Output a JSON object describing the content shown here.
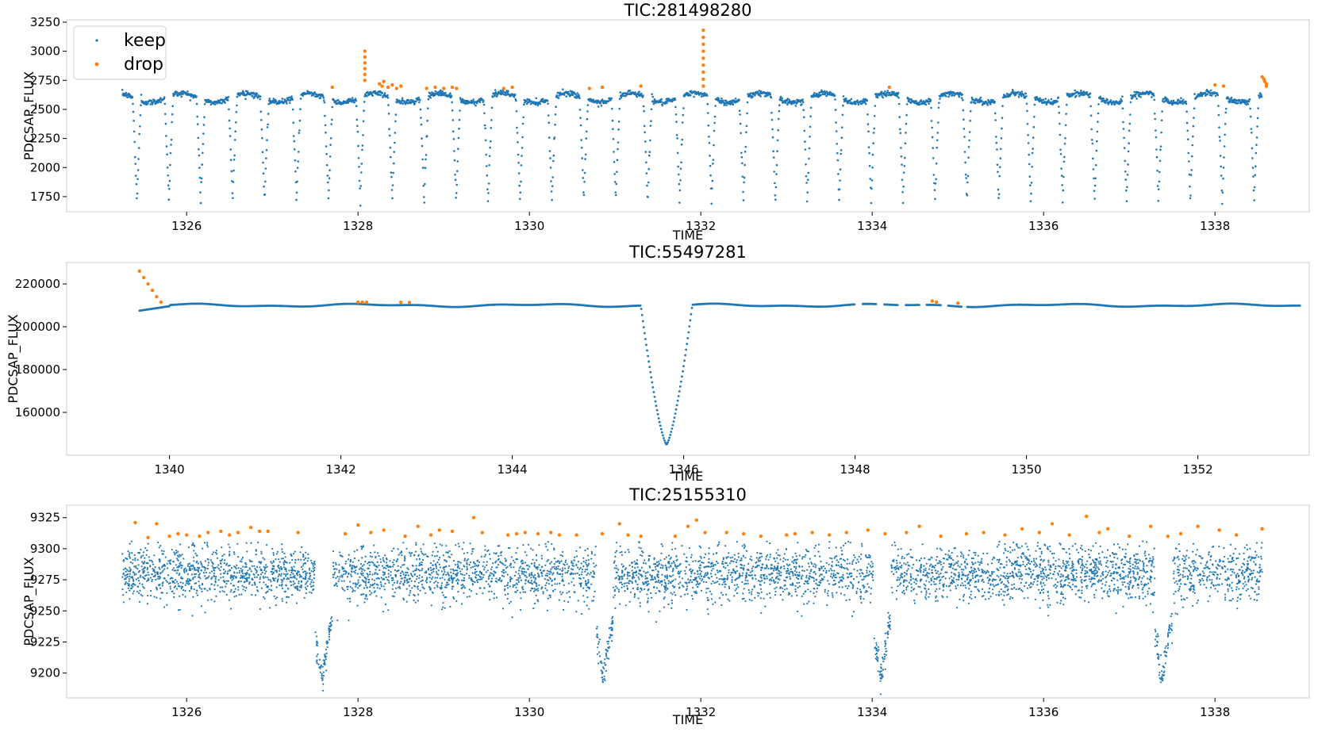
{
  "colors": {
    "keep": "#1f77b4",
    "drop": "#ff7f0e"
  },
  "legend": {
    "items": [
      "keep",
      "drop"
    ],
    "location": "upper-left"
  },
  "chart_data": [
    {
      "type": "scatter",
      "title": "TIC:281498280",
      "xlabel": "TIME",
      "ylabel": "PDCSAP_FLUX",
      "xlim": [
        1324.6,
        1339.1
      ],
      "ylim": [
        1620,
        3270
      ],
      "xticks": [
        1326,
        1328,
        1330,
        1332,
        1334,
        1336,
        1338
      ],
      "yticks": [
        1750,
        2000,
        2250,
        2500,
        2750,
        3000,
        3250
      ],
      "series": [
        {
          "name": "keep",
          "description": "periodic baseline ~2600 with sinusoidal ripple and narrow eclipse dips to ~1700",
          "baseline": 2600,
          "ripple_amplitude": 40,
          "ripple_period": 0.75,
          "dip_period": 0.3725,
          "dip_first": 1325.42,
          "dip_min": 1700,
          "x_range": [
            1325.25,
            1338.55
          ]
        },
        {
          "name": "drop",
          "description": "outliers above baseline",
          "points": [
            [
              1328.08,
              3000
            ],
            [
              1328.08,
              2950
            ],
            [
              1328.08,
              2900
            ],
            [
              1328.08,
              2850
            ],
            [
              1328.08,
              2800
            ],
            [
              1328.08,
              2750
            ],
            [
              1328.25,
              2720
            ],
            [
              1328.28,
              2700
            ],
            [
              1328.3,
              2740
            ],
            [
              1328.35,
              2690
            ],
            [
              1328.4,
              2710
            ],
            [
              1328.45,
              2680
            ],
            [
              1328.5,
              2700
            ],
            [
              1328.8,
              2680
            ],
            [
              1328.9,
              2690
            ],
            [
              1329.0,
              2680
            ],
            [
              1329.1,
              2690
            ],
            [
              1329.15,
              2680
            ],
            [
              1329.7,
              2680
            ],
            [
              1329.8,
              2690
            ],
            [
              1330.7,
              2680
            ],
            [
              1330.85,
              2690
            ],
            [
              1331.3,
              2700
            ],
            [
              1327.7,
              2690
            ],
            [
              1332.03,
              3180
            ],
            [
              1332.03,
              3120
            ],
            [
              1332.03,
              3060
            ],
            [
              1332.03,
              3000
            ],
            [
              1332.03,
              2940
            ],
            [
              1332.03,
              2880
            ],
            [
              1332.03,
              2820
            ],
            [
              1332.03,
              2760
            ],
            [
              1332.03,
              2700
            ],
            [
              1334.2,
              2690
            ],
            [
              1338.0,
              2710
            ],
            [
              1338.1,
              2700
            ],
            [
              1338.55,
              2780
            ],
            [
              1338.57,
              2760
            ],
            [
              1338.58,
              2740
            ],
            [
              1338.6,
              2720
            ],
            [
              1338.6,
              2700
            ]
          ]
        }
      ]
    },
    {
      "type": "scatter",
      "title": "TIC:55497281",
      "xlabel": "TIME",
      "ylabel": "PDCSAP_FLUX",
      "xlim": [
        1338.8,
        1353.3
      ],
      "ylim": [
        140000,
        230000
      ],
      "xticks": [
        1340,
        1342,
        1344,
        1346,
        1348,
        1350,
        1352
      ],
      "yticks": [
        160000,
        180000,
        200000,
        220000
      ],
      "series": [
        {
          "name": "keep",
          "description": "flat baseline ~210000 with a single deep eclipse near 1345.8 reaching ~145000; data gaps near 1348-1349",
          "baseline": 210000,
          "eclipse_center": 1345.8,
          "eclipse_min": 145000,
          "x_range": [
            1339.65,
            1353.2
          ]
        },
        {
          "name": "drop",
          "description": "initial decay and small bumps",
          "points": [
            [
              1339.65,
              226000
            ],
            [
              1339.7,
              223000
            ],
            [
              1339.75,
              220000
            ],
            [
              1339.8,
              217000
            ],
            [
              1339.85,
              214000
            ],
            [
              1339.9,
              211500
            ],
            [
              1342.2,
              211500
            ],
            [
              1342.25,
              211500
            ],
            [
              1342.3,
              211400
            ],
            [
              1342.7,
              211400
            ],
            [
              1342.8,
              211300
            ],
            [
              1348.9,
              212000
            ],
            [
              1348.95,
              211500
            ],
            [
              1349.2,
              211000
            ]
          ]
        }
      ]
    },
    {
      "type": "scatter",
      "title": "TIC:25155310",
      "xlabel": "TIME",
      "ylabel": "PDCSAP_FLUX",
      "xlim": [
        1324.6,
        1339.1
      ],
      "ylim": [
        9180,
        9335
      ],
      "xticks": [
        1326,
        1328,
        1330,
        1332,
        1334,
        1336,
        1338
      ],
      "yticks": [
        9200,
        9225,
        9250,
        9275,
        9300,
        9325
      ],
      "series": [
        {
          "name": "keep",
          "description": "noisy scatter around ~9280 with four eclipse dips to ~9195 near 1327.6, 1330.9, 1334.1, 1337.4",
          "baseline": 9280,
          "noise": 11,
          "dips": [
            1327.58,
            1330.86,
            1334.1,
            1337.38
          ],
          "dip_min": 9195,
          "gaps": [
            [
              1327.5,
              1327.7
            ],
            [
              1330.78,
              1330.98
            ],
            [
              1334.02,
              1334.22
            ],
            [
              1337.3,
              1337.5
            ]
          ],
          "x_range": [
            1325.25,
            1338.55
          ]
        },
        {
          "name": "drop",
          "description": "outliers above ~9308",
          "points": [
            [
              1325.4,
              9321
            ],
            [
              1325.55,
              9309
            ],
            [
              1325.65,
              9320
            ],
            [
              1325.8,
              9310
            ],
            [
              1325.9,
              9312
            ],
            [
              1326.0,
              9311
            ],
            [
              1326.15,
              9310
            ],
            [
              1326.25,
              9313
            ],
            [
              1326.4,
              9314
            ],
            [
              1326.5,
              9311
            ],
            [
              1326.6,
              9313
            ],
            [
              1326.75,
              9317
            ],
            [
              1326.85,
              9314
            ],
            [
              1326.95,
              9314
            ],
            [
              1327.3,
              9313
            ],
            [
              1327.85,
              9312
            ],
            [
              1328.0,
              9319
            ],
            [
              1328.15,
              9313
            ],
            [
              1328.3,
              9315
            ],
            [
              1328.55,
              9310
            ],
            [
              1328.7,
              9318
            ],
            [
              1328.85,
              9311
            ],
            [
              1328.95,
              9315
            ],
            [
              1329.1,
              9314
            ],
            [
              1329.35,
              9325
            ],
            [
              1329.45,
              9313
            ],
            [
              1329.75,
              9311
            ],
            [
              1329.85,
              9312
            ],
            [
              1329.95,
              9313
            ],
            [
              1330.1,
              9312
            ],
            [
              1330.25,
              9313
            ],
            [
              1330.35,
              9311
            ],
            [
              1330.55,
              9311
            ],
            [
              1330.85,
              9312
            ],
            [
              1331.05,
              9320
            ],
            [
              1331.15,
              9311
            ],
            [
              1331.3,
              9310
            ],
            [
              1331.7,
              9310
            ],
            [
              1331.85,
              9318
            ],
            [
              1331.95,
              9323
            ],
            [
              1332.05,
              9313
            ],
            [
              1332.3,
              9313
            ],
            [
              1332.5,
              9312
            ],
            [
              1332.7,
              9310
            ],
            [
              1333.0,
              9311
            ],
            [
              1333.1,
              9312
            ],
            [
              1333.3,
              9313
            ],
            [
              1333.5,
              9311
            ],
            [
              1333.7,
              9313
            ],
            [
              1333.95,
              9315
            ],
            [
              1334.15,
              9312
            ],
            [
              1334.4,
              9313
            ],
            [
              1334.55,
              9318
            ],
            [
              1334.8,
              9310
            ],
            [
              1335.1,
              9312
            ],
            [
              1335.3,
              9313
            ],
            [
              1335.55,
              9311
            ],
            [
              1335.75,
              9316
            ],
            [
              1335.95,
              9313
            ],
            [
              1336.1,
              9320
            ],
            [
              1336.3,
              9311
            ],
            [
              1336.5,
              9326
            ],
            [
              1336.65,
              9313
            ],
            [
              1336.75,
              9316
            ],
            [
              1337.0,
              9310
            ],
            [
              1337.25,
              9318
            ],
            [
              1337.45,
              9310
            ],
            [
              1337.6,
              9312
            ],
            [
              1337.8,
              9318
            ],
            [
              1338.05,
              9315
            ],
            [
              1338.25,
              9311
            ],
            [
              1338.55,
              9316
            ]
          ]
        }
      ]
    }
  ]
}
